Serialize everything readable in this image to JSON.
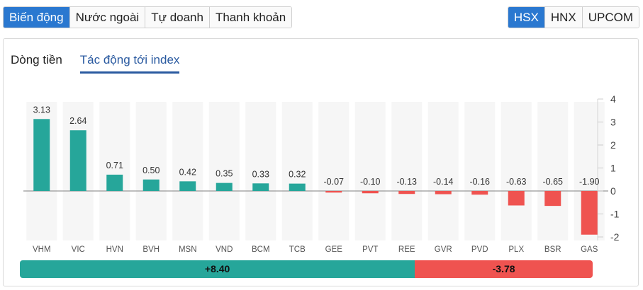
{
  "top_left_tabs": [
    {
      "label": "Biến động",
      "active": true
    },
    {
      "label": "Nước ngoài",
      "active": false
    },
    {
      "label": "Tự doanh",
      "active": false
    },
    {
      "label": "Thanh khoản",
      "active": false
    }
  ],
  "exchange_tabs": [
    {
      "label": "HSX",
      "active": true
    },
    {
      "label": "HNX",
      "active": false
    },
    {
      "label": "UPCOM",
      "active": false
    }
  ],
  "sub_tabs": [
    {
      "label": "Dòng tiền",
      "active": false
    },
    {
      "label": "Tác động tới index",
      "active": true
    }
  ],
  "colors": {
    "positive": "#26a69a",
    "negative": "#ef5350",
    "accent": "#2a78d0"
  },
  "chart_data": {
    "type": "bar",
    "categories": [
      "VHM",
      "VIC",
      "HVN",
      "BVH",
      "MSN",
      "VND",
      "BCM",
      "TCB",
      "GEE",
      "PVT",
      "REE",
      "GVR",
      "PVD",
      "PLX",
      "BSR",
      "GAS"
    ],
    "values": [
      3.13,
      2.64,
      0.71,
      0.5,
      0.42,
      0.35,
      0.33,
      0.32,
      -0.07,
      -0.1,
      -0.13,
      -0.14,
      -0.16,
      -0.63,
      -0.65,
      -1.9
    ],
    "data_labels": [
      "3.13",
      "2.64",
      "0.71",
      "0.50",
      "0.42",
      "0.35",
      "0.33",
      "0.32",
      "-0.07",
      "-0.10",
      "-0.13",
      "-0.14",
      "-0.16",
      "-0.63",
      "-0.65",
      "-1.90"
    ],
    "ylim": [
      -2,
      4
    ],
    "yticks": [
      4,
      3,
      2,
      1,
      0,
      -1,
      -2
    ],
    "y_axis_side": "right",
    "grid": false
  },
  "summary": {
    "positive_label": "+8.40",
    "negative_label": "-3.78",
    "positive_value": 8.4,
    "negative_value": -3.78
  }
}
